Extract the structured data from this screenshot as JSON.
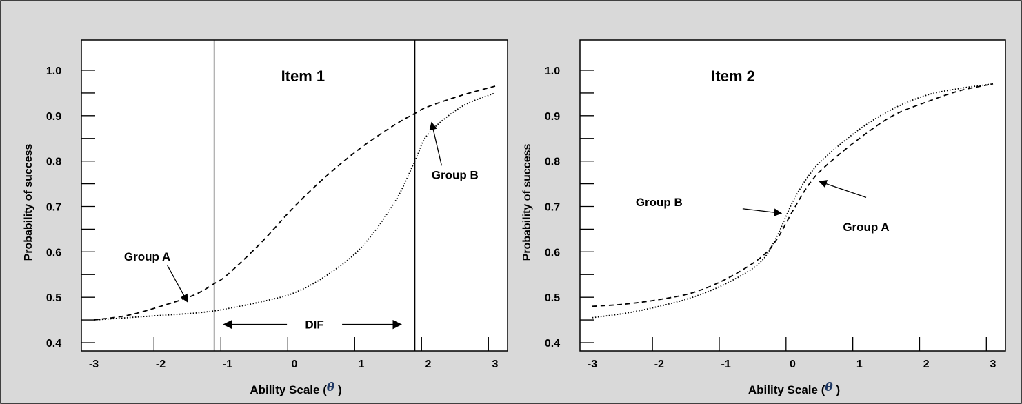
{
  "colors": {
    "background": "#d9d9d9",
    "plot_area": "#ffffff",
    "ink": "#000000",
    "theta_accent": "#1f3864"
  },
  "chart_data": [
    {
      "type": "line",
      "title": "Item 1",
      "xlabel_prefix": "Ability Scale (",
      "xlabel_symbol": "θ",
      "xlabel_suffix": " )",
      "ylabel": "Probability of success",
      "xlim": [
        -3,
        3
      ],
      "ylim": [
        0.4,
        1.0
      ],
      "x_ticks": [
        -3,
        -2,
        -1,
        0,
        1,
        2,
        3
      ],
      "x_tick_labels": [
        "-3",
        "-2",
        "-1",
        "0",
        "1",
        "2",
        "3"
      ],
      "y_ticks": [
        0.4,
        0.5,
        0.6,
        0.7,
        0.8,
        0.9,
        1.0
      ],
      "y_tick_labels": [
        "0.4",
        "0.5",
        "0.6",
        "0.7",
        "0.8",
        "0.9",
        "1.0"
      ],
      "grid": false,
      "series": [
        {
          "name": "Group A",
          "style": "dashed",
          "x": [
            -3.0,
            -2.5,
            -2.0,
            -1.5,
            -1.2,
            -1.0,
            -0.5,
            0.0,
            0.5,
            1.0,
            1.5,
            1.8,
            2.0,
            2.5,
            3.0
          ],
          "y": [
            0.45,
            0.46,
            0.48,
            0.505,
            0.53,
            0.55,
            0.62,
            0.7,
            0.77,
            0.83,
            0.88,
            0.905,
            0.92,
            0.945,
            0.965
          ]
        },
        {
          "name": "Group B",
          "style": "dotted",
          "x": [
            -3.0,
            -2.5,
            -2.0,
            -1.5,
            -1.2,
            -1.0,
            -0.5,
            0.0,
            0.5,
            1.0,
            1.5,
            1.8,
            2.0,
            2.5,
            3.0
          ],
          "y": [
            0.45,
            0.455,
            0.46,
            0.465,
            0.47,
            0.475,
            0.49,
            0.51,
            0.55,
            0.61,
            0.71,
            0.8,
            0.86,
            0.92,
            0.95
          ]
        }
      ],
      "vertical_lines": [
        -1.2,
        1.8
      ],
      "annotations": [
        {
          "text": "Group A",
          "x": -2.2,
          "y": 0.59,
          "arrow_from": [
            -1.9,
            0.57
          ],
          "arrow_to": [
            -1.6,
            0.49
          ]
        },
        {
          "text": "Group B",
          "x": 2.4,
          "y": 0.77,
          "arrow_from": [
            2.2,
            0.79
          ],
          "arrow_to": [
            2.05,
            0.885
          ]
        },
        {
          "text": "DIF",
          "x": 0.3,
          "y": 0.44,
          "arrow_left_to": -1.2,
          "arrow_right_to": 1.8
        }
      ]
    },
    {
      "type": "line",
      "title": "Item 2",
      "xlabel_prefix": "Ability Scale (",
      "xlabel_symbol": "θ",
      "xlabel_suffix": " )",
      "ylabel": "Probability of success",
      "xlim": [
        -3,
        3
      ],
      "ylim": [
        0.4,
        1.0
      ],
      "x_ticks": [
        -3,
        -2,
        -1,
        0,
        1,
        2,
        3
      ],
      "x_tick_labels": [
        "-3",
        "-2",
        "-1",
        "0",
        "1",
        "2",
        "3"
      ],
      "y_ticks": [
        0.4,
        0.5,
        0.6,
        0.7,
        0.8,
        0.9,
        1.0
      ],
      "y_tick_labels": [
        "0.4",
        "0.5",
        "0.6",
        "0.7",
        "0.8",
        "0.9",
        "1.0"
      ],
      "grid": false,
      "series": [
        {
          "name": "Group A",
          "style": "dashed",
          "x": [
            -3.0,
            -2.5,
            -2.0,
            -1.5,
            -1.0,
            -0.5,
            -0.25,
            0.0,
            0.25,
            0.5,
            1.0,
            1.5,
            2.0,
            2.5,
            3.0
          ],
          "y": [
            0.48,
            0.485,
            0.495,
            0.51,
            0.54,
            0.585,
            0.625,
            0.69,
            0.75,
            0.79,
            0.85,
            0.9,
            0.93,
            0.955,
            0.97
          ]
        },
        {
          "name": "Group B",
          "style": "dotted",
          "x": [
            -3.0,
            -2.5,
            -2.0,
            -1.5,
            -1.0,
            -0.5,
            -0.25,
            0.0,
            0.25,
            0.5,
            1.0,
            1.5,
            2.0,
            2.5,
            3.0
          ],
          "y": [
            0.455,
            0.465,
            0.48,
            0.5,
            0.53,
            0.575,
            0.63,
            0.71,
            0.77,
            0.81,
            0.87,
            0.915,
            0.945,
            0.96,
            0.97
          ]
        }
      ],
      "vertical_lines": [],
      "annotations": [
        {
          "text": "Group B",
          "x": -2.0,
          "y": 0.71,
          "arrow_from": [
            -0.75,
            0.695
          ],
          "arrow_to": [
            -0.17,
            0.685
          ]
        },
        {
          "text": "Group A",
          "x": 1.1,
          "y": 0.655,
          "arrow_from": [
            1.1,
            0.72
          ],
          "arrow_to": [
            0.4,
            0.755
          ]
        }
      ]
    }
  ]
}
